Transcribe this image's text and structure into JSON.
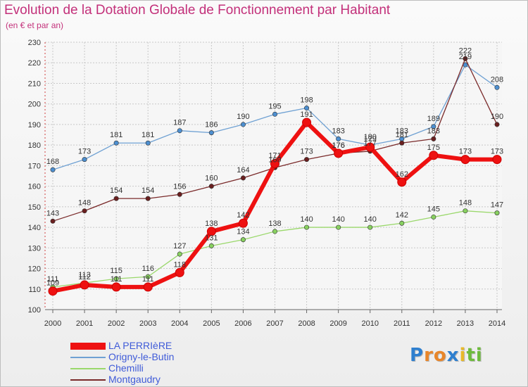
{
  "header": {
    "title": "Evolution de la Dotation Globale de Fonctionnement par Habitant",
    "subtitle": "(en € et par an)"
  },
  "brand": {
    "text": "Proxiti",
    "letters": [
      "P",
      "r",
      "o",
      "x",
      "i",
      "t",
      "i"
    ],
    "colors": [
      "#2e7fcf",
      "#e8862a",
      "#e8862a",
      "#2e7fcf",
      "#e8b92a",
      "#6dbb3c",
      "#6dbb3c"
    ]
  },
  "chart_data": {
    "type": "line",
    "title": "Evolution de la Dotation Globale de Fonctionnement par Habitant",
    "subtitle": "(en € et par an)",
    "x": [
      "2000",
      "2001",
      "2002",
      "2003",
      "2004",
      "2005",
      "2006",
      "2007",
      "2008",
      "2009",
      "2010",
      "2011",
      "2012",
      "2013",
      "2014"
    ],
    "ylim": [
      100,
      230
    ],
    "yticks": [
      100,
      110,
      120,
      130,
      140,
      150,
      160,
      170,
      180,
      190,
      200,
      210,
      220,
      230
    ],
    "grid": true,
    "legend_position": "bottom-left",
    "series": [
      {
        "name": "LA PERRIèRE",
        "color": "#ee1111",
        "width": 6,
        "values": [
          109,
          112,
          111,
          111,
          118,
          138,
          142,
          171,
          191,
          176,
          179,
          162,
          175,
          173,
          173
        ],
        "labels": [
          "109",
          "112",
          "111",
          "111",
          "118",
          "138",
          "142",
          "171",
          "191",
          "176",
          "179",
          "162",
          "175",
          "173",
          "173"
        ]
      },
      {
        "name": "Origny-le-Butin",
        "color": "#6fa1d3",
        "width": 1.3,
        "values": [
          168,
          173,
          181,
          181,
          187,
          186,
          190,
          195,
          198,
          183,
          180,
          183,
          189,
          219,
          208
        ],
        "labels": [
          "168",
          "173",
          "181",
          "181",
          "187",
          "186",
          "190",
          "195",
          "198",
          "183",
          "180",
          "183",
          "189",
          "219",
          "208"
        ]
      },
      {
        "name": "Chemilli",
        "color": "#9ad86b",
        "width": 1.3,
        "values": [
          111,
          113,
          115,
          116,
          127,
          131,
          134,
          138,
          140,
          140,
          140,
          142,
          145,
          148,
          147
        ],
        "labels": [
          "111",
          "113",
          "115",
          "116",
          "127",
          "131",
          "134",
          "138",
          "140",
          "140",
          "140",
          "142",
          "145",
          "148",
          "147"
        ]
      },
      {
        "name": "Montgaudry",
        "color": "#7a2a2a",
        "width": 1.3,
        "values": [
          143,
          148,
          154,
          154,
          156,
          160,
          164,
          169,
          173,
          176,
          177,
          181,
          183,
          222,
          190
        ],
        "labels": [
          "143",
          "148",
          "154",
          "154",
          "156",
          "160",
          "164",
          "169",
          "173",
          "176",
          "177",
          "181",
          "183",
          "222",
          "190"
        ]
      }
    ]
  }
}
